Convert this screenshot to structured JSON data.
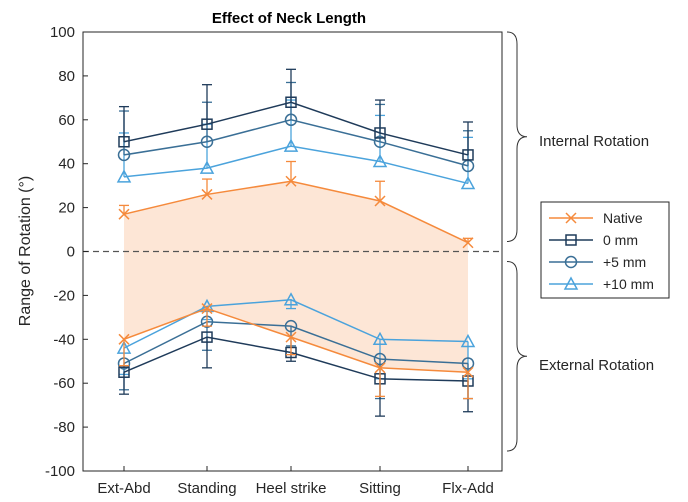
{
  "chart_data": {
    "type": "line",
    "title": "Effect of Neck Length",
    "xlabel": "",
    "ylabel": "Range of Rotation (°)",
    "categories": [
      "Ext-Abd",
      "Standing",
      "Heel strike",
      "Sitting",
      "Flx-Add"
    ],
    "ylim": [
      -100,
      100
    ],
    "yticks": [
      -100,
      -80,
      -60,
      -40,
      -20,
      0,
      20,
      40,
      60,
      80,
      100
    ],
    "grid": false,
    "zero_line": "dashed",
    "legend_position": "right",
    "annotations": [
      "Internal Rotation",
      "External Rotation"
    ],
    "shaded_region": {
      "series": "Native",
      "color": "#fde6d6"
    },
    "series": [
      {
        "name": "Native",
        "color": "#f58a3c",
        "marker": "x",
        "internal": [
          17,
          26,
          32,
          23,
          4
        ],
        "internal_err": [
          4,
          7,
          9,
          9,
          2
        ],
        "external": [
          -40,
          -26,
          -39,
          -53,
          -55
        ],
        "external_err": [
          12,
          8,
          8,
          13,
          12
        ]
      },
      {
        "name": "0 mm",
        "color": "#1f3b5a",
        "marker": "square",
        "internal": [
          50,
          58,
          68,
          54,
          44
        ],
        "internal_err": [
          16,
          18,
          15,
          15,
          15
        ],
        "external": [
          -55,
          -39,
          -46,
          -58,
          -59
        ],
        "external_err": [
          10,
          14,
          4,
          17,
          14
        ]
      },
      {
        "name": "+5 mm",
        "color": "#3a6f96",
        "marker": "circle",
        "internal": [
          44,
          50,
          60,
          50,
          39
        ],
        "internal_err": [
          20,
          18,
          17,
          17,
          16
        ],
        "external": [
          -51,
          -32,
          -34,
          -49,
          -51
        ],
        "external_err": [
          12,
          13,
          9,
          18,
          16
        ]
      },
      {
        "name": "+10 mm",
        "color": "#4ba3dc",
        "marker": "triangle",
        "internal": [
          34,
          38,
          48,
          41,
          31
        ],
        "internal_err": [
          20,
          20,
          21,
          21,
          21
        ],
        "external": [
          -44,
          -25,
          -22,
          -40,
          -41
        ],
        "external_err": [
          12,
          6,
          4,
          18,
          17
        ]
      }
    ]
  }
}
